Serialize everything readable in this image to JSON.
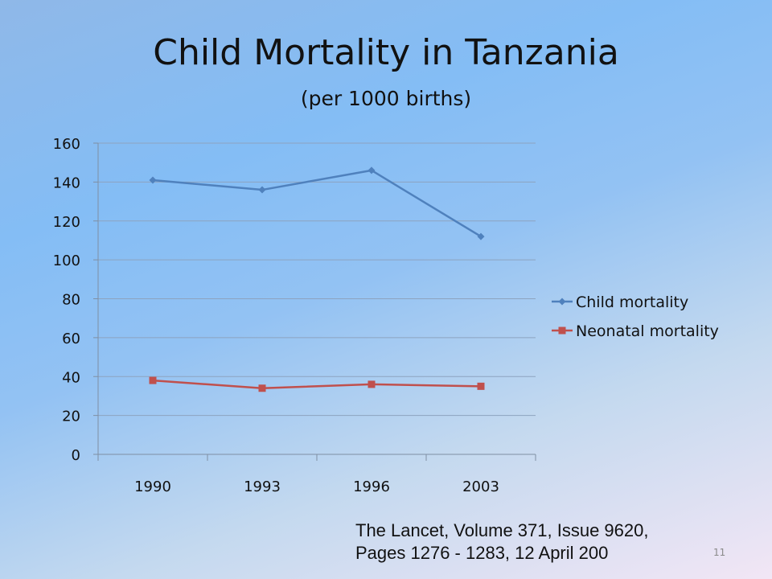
{
  "slide": {
    "title": "Child Mortality in Tanzania",
    "subtitle": "(per 1000 births)",
    "source_line_1": "The Lancet, Volume 371, Issue 9620,",
    "source_line_2": "Pages 1276 - 1283, 12 April 200",
    "page_number": "11"
  },
  "chart_data": {
    "type": "line",
    "title": "",
    "xlabel": "",
    "ylabel": "",
    "categories": [
      "1990",
      "1993",
      "1996",
      "2003"
    ],
    "ylim": [
      0,
      160
    ],
    "y_ticks": [
      0,
      20,
      40,
      60,
      80,
      100,
      120,
      140,
      160
    ],
    "grid": true,
    "legend_position": "right",
    "series": [
      {
        "name": "Child mortality",
        "values": [
          141,
          136,
          146,
          112
        ],
        "color": "#4f81bd",
        "marker": "diamond"
      },
      {
        "name": "Neonatal mortality",
        "values": [
          38,
          34,
          36,
          35
        ],
        "color": "#c0504d",
        "marker": "square"
      }
    ]
  }
}
